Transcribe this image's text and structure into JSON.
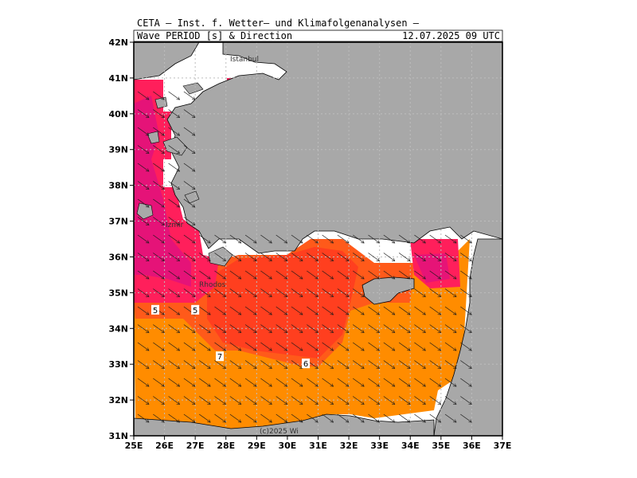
{
  "header": {
    "line1": "CETA — Inst. f. Wetter— und Klimafolgenanalysen —",
    "line2_left": "Wave PERIOD [s] & Direction",
    "line2_right": "12.07.2025 09 UTC"
  },
  "copyright": "(c)2025 Wi",
  "place_labels": [
    "Izmir",
    "Istanbul",
    "Rhodos"
  ],
  "colors": {
    "land": "#a8a8a8",
    "period_4": "#ff1f5b",
    "period_5": "#e0127e",
    "period_6": "#ff8c00",
    "period_7": "#ff6a1a",
    "period_8": "#ff4a1a",
    "coast": "#000000"
  },
  "chart_data": {
    "type": "heatmap",
    "title": "Wave PERIOD [s] & Direction",
    "valid_time": "12.07.2025 09 UTC",
    "x_axis": {
      "ticks": [
        "25E",
        "26E",
        "27E",
        "28E",
        "29E",
        "30E",
        "31E",
        "32E",
        "33E",
        "34E",
        "35E",
        "36E",
        "37E"
      ],
      "range": [
        25,
        37
      ]
    },
    "y_axis": {
      "ticks": [
        "31N",
        "32N",
        "33N",
        "34N",
        "35N",
        "36N",
        "37N",
        "38N",
        "39N",
        "40N",
        "41N",
        "42N"
      ],
      "range": [
        31,
        42
      ]
    },
    "contour_labels": [
      {
        "text": "5",
        "lon": 25.7,
        "lat": 34.5
      },
      {
        "text": "5",
        "lon": 27.0,
        "lat": 34.5
      },
      {
        "text": "7",
        "lon": 27.8,
        "lat": 33.2
      },
      {
        "text": "6",
        "lon": 30.6,
        "lat": 33.0
      }
    ],
    "dominant_direction": "NW to SE",
    "grid": true
  }
}
